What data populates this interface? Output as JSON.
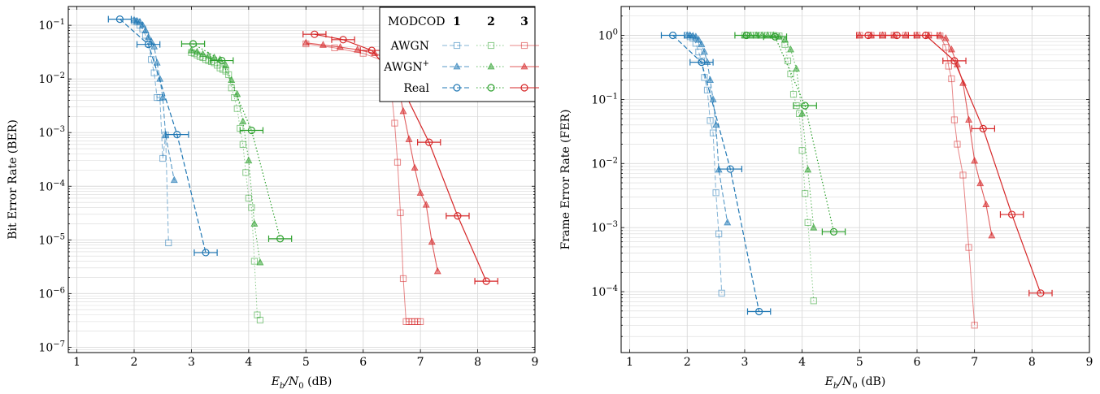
{
  "colors": {
    "series1": "#1f77b4",
    "series2": "#2ca02c",
    "series3": "#d62728",
    "grid": "#d9d9d9",
    "axis": "#000000"
  },
  "legend": {
    "header": "MODCOD",
    "columns": [
      "1",
      "2",
      "3"
    ],
    "rows": [
      {
        "label": "AWGN",
        "label_sup": "",
        "marker": "square",
        "opacity": 0.55,
        "dash": "dashed-light"
      },
      {
        "label": "AWGN",
        "label_sup": "+",
        "marker": "triangle",
        "opacity": 0.75,
        "dash": "dashed-medium"
      },
      {
        "label": "Real",
        "label_sup": "",
        "marker": "circle",
        "opacity": 1.0,
        "dash": "dashed-dark"
      }
    ]
  },
  "xlabel": {
    "main": "E",
    "sub1": "b",
    "slash": "/N",
    "sub2": "0",
    "unit": " (dB)"
  },
  "chart_data": [
    {
      "type": "scatter",
      "id": "ber",
      "ylabel": "Bit Error Rate (BER)",
      "xlim": [
        0.85,
        9.0
      ],
      "ylim_log10": [
        -7.1,
        -0.65
      ],
      "y_scale": "log",
      "grid": true,
      "legend_position": "top-right",
      "x_ticks": [
        1,
        2,
        3,
        4,
        5,
        6,
        7,
        8,
        9
      ],
      "y_ticks": [
        {
          "base": "10",
          "exp": "−1",
          "v": -1
        },
        {
          "base": "10",
          "exp": "−2",
          "v": -2
        },
        {
          "base": "10",
          "exp": "−3",
          "v": -3
        },
        {
          "base": "10",
          "exp": "−4",
          "v": -4
        },
        {
          "base": "10",
          "exp": "−5",
          "v": -5
        },
        {
          "base": "10",
          "exp": "−6",
          "v": -6
        },
        {
          "base": "10",
          "exp": "−7",
          "v": -7
        }
      ],
      "series": [
        {
          "modcod": 1,
          "kind": "AWGN",
          "x": [
            2.0,
            2.05,
            2.1,
            2.15,
            2.2,
            2.25,
            2.3,
            2.35,
            2.4,
            2.45,
            2.5,
            2.55,
            2.6
          ],
          "y": [
            0.12,
            0.115,
            0.1,
            0.085,
            0.065,
            0.045,
            0.023,
            0.013,
            0.0045,
            0.0045,
            0.00033,
            0.0009,
            8.8e-06
          ]
        },
        {
          "modcod": 1,
          "kind": "AWGN+",
          "x": [
            2.0,
            2.05,
            2.1,
            2.15,
            2.2,
            2.25,
            2.3,
            2.35,
            2.4,
            2.45,
            2.5,
            2.55,
            2.7
          ],
          "y": [
            0.125,
            0.12,
            0.115,
            0.1,
            0.08,
            0.06,
            0.05,
            0.04,
            0.02,
            0.01,
            0.0045,
            0.0009,
            0.00013
          ]
        },
        {
          "modcod": 1,
          "kind": "Real",
          "x": [
            1.75,
            2.25,
            2.75,
            3.25
          ],
          "y": [
            0.13,
            0.044,
            0.00092,
            5.8e-06
          ],
          "xerr": [
            0.2,
            0.2,
            0.2,
            0.2
          ]
        },
        {
          "modcod": 2,
          "kind": "AWGN",
          "x": [
            3.0,
            3.05,
            3.1,
            3.15,
            3.2,
            3.25,
            3.3,
            3.35,
            3.4,
            3.45,
            3.5,
            3.55,
            3.6,
            3.65,
            3.7,
            3.75,
            3.8,
            3.85,
            3.9,
            3.95,
            4.0,
            4.05,
            4.1,
            4.15,
            4.2
          ],
          "y": [
            0.031,
            0.03,
            0.028,
            0.026,
            0.025,
            0.023,
            0.022,
            0.021,
            0.02,
            0.018,
            0.016,
            0.015,
            0.014,
            0.012,
            0.0068,
            0.0045,
            0.0028,
            0.0012,
            0.0006,
            0.00018,
            6e-05,
            4e-05,
            4e-06,
            4e-07,
            3.2e-07
          ]
        },
        {
          "modcod": 2,
          "kind": "AWGN+",
          "x": [
            3.0,
            3.1,
            3.2,
            3.3,
            3.4,
            3.5,
            3.6,
            3.7,
            3.8,
            3.9,
            4.0,
            4.1,
            4.2
          ],
          "y": [
            0.034,
            0.032,
            0.029,
            0.027,
            0.025,
            0.023,
            0.018,
            0.0095,
            0.0052,
            0.0016,
            0.0003,
            2e-05,
            3.8e-06
          ]
        },
        {
          "modcod": 2,
          "kind": "Real",
          "x": [
            3.03,
            3.53,
            4.05,
            4.55
          ],
          "y": [
            0.045,
            0.022,
            0.0011,
            1.05e-05
          ],
          "xerr": [
            0.2,
            0.2,
            0.2,
            0.2
          ]
        },
        {
          "modcod": 3,
          "kind": "AWGN",
          "x": [
            5.0,
            5.5,
            6.0,
            6.4,
            6.5,
            6.55,
            6.6,
            6.65,
            6.7,
            6.75,
            6.8,
            6.85,
            6.9,
            6.95,
            7.0
          ],
          "y": [
            0.045,
            0.038,
            0.03,
            0.021,
            0.005,
            0.0015,
            0.00028,
            3.2e-05,
            1.9e-06,
            3e-07,
            3e-07,
            3e-07,
            3e-07,
            3e-07,
            3e-07
          ]
        },
        {
          "modcod": 3,
          "kind": "AWGN+",
          "x": [
            5.0,
            5.3,
            5.6,
            5.9,
            6.2,
            6.5,
            6.6,
            6.7,
            6.8,
            6.9,
            7.0,
            7.1,
            7.2,
            7.3
          ],
          "y": [
            0.047,
            0.043,
            0.039,
            0.035,
            0.03,
            0.022,
            0.0085,
            0.0025,
            0.00075,
            0.00022,
            7.5e-05,
            4.5e-05,
            9.2e-06,
            2.6e-06
          ]
        },
        {
          "modcod": 3,
          "kind": "Real",
          "x": [
            5.15,
            5.65,
            6.15,
            6.65,
            7.15,
            7.65,
            8.15
          ],
          "y": [
            0.068,
            0.054,
            0.034,
            0.008,
            0.00066,
            2.8e-05,
            1.7e-06
          ],
          "xerr": [
            0.2,
            0.2,
            0.2,
            0.2,
            0.2,
            0.2,
            0.2
          ]
        }
      ]
    },
    {
      "type": "scatter",
      "id": "fer",
      "ylabel": "Frame Error Rate (FER)",
      "xlim": [
        0.85,
        9.0
      ],
      "ylim_log10": [
        -4.95,
        0.45
      ],
      "y_scale": "log",
      "grid": true,
      "legend_position": "none",
      "x_ticks": [
        1,
        2,
        3,
        4,
        5,
        6,
        7,
        8,
        9
      ],
      "y_ticks": [
        {
          "base": "10",
          "exp": "0",
          "v": 0
        },
        {
          "base": "10",
          "exp": "−1",
          "v": -1
        },
        {
          "base": "10",
          "exp": "−2",
          "v": -2
        },
        {
          "base": "10",
          "exp": "−3",
          "v": -3
        },
        {
          "base": "10",
          "exp": "−4",
          "v": -4
        }
      ],
      "series": [
        {
          "modcod": 1,
          "kind": "AWGN",
          "x": [
            2.0,
            2.05,
            2.1,
            2.15,
            2.2,
            2.25,
            2.3,
            2.35,
            2.4,
            2.45,
            2.5,
            2.55,
            2.6
          ],
          "y": [
            1.0,
            0.95,
            0.9,
            0.75,
            0.55,
            0.4,
            0.22,
            0.14,
            0.047,
            0.03,
            0.0035,
            0.0008,
            9.5e-05
          ]
        },
        {
          "modcod": 1,
          "kind": "AWGN+",
          "x": [
            2.0,
            2.05,
            2.1,
            2.15,
            2.2,
            2.25,
            2.3,
            2.35,
            2.4,
            2.45,
            2.5,
            2.55,
            2.7
          ],
          "y": [
            1.0,
            1.0,
            0.98,
            0.95,
            0.85,
            0.72,
            0.55,
            0.38,
            0.2,
            0.1,
            0.04,
            0.008,
            0.0012
          ]
        },
        {
          "modcod": 1,
          "kind": "Real",
          "x": [
            1.75,
            2.25,
            2.75,
            3.25
          ],
          "y": [
            1.0,
            0.38,
            0.0082,
            4.9e-05
          ],
          "xerr": [
            0.2,
            0.2,
            0.2,
            0.2
          ]
        },
        {
          "modcod": 2,
          "kind": "AWGN",
          "x": [
            3.0,
            3.1,
            3.2,
            3.3,
            3.4,
            3.5,
            3.6,
            3.7,
            3.75,
            3.8,
            3.85,
            3.9,
            3.95,
            4.0,
            4.05,
            4.1,
            4.2
          ],
          "y": [
            1.0,
            1.0,
            1.0,
            1.0,
            1.0,
            1.0,
            0.98,
            0.72,
            0.4,
            0.25,
            0.12,
            0.08,
            0.06,
            0.016,
            0.0034,
            0.0012,
            7.2e-05
          ]
        },
        {
          "modcod": 2,
          "kind": "AWGN+",
          "x": [
            3.0,
            3.1,
            3.2,
            3.3,
            3.4,
            3.5,
            3.6,
            3.7,
            3.8,
            3.9,
            4.0,
            4.1,
            4.2
          ],
          "y": [
            1.0,
            1.0,
            1.0,
            1.0,
            1.0,
            1.0,
            0.95,
            0.85,
            0.6,
            0.3,
            0.06,
            0.008,
            0.001
          ]
        },
        {
          "modcod": 2,
          "kind": "Real",
          "x": [
            3.03,
            3.53,
            4.05,
            4.55
          ],
          "y": [
            1.0,
            0.95,
            0.08,
            0.00086
          ],
          "xerr": [
            0.2,
            0.2,
            0.2,
            0.2
          ]
        },
        {
          "modcod": 3,
          "kind": "AWGN",
          "x": [
            5.0,
            5.2,
            5.4,
            5.6,
            5.8,
            6.0,
            6.2,
            6.4,
            6.5,
            6.55,
            6.6,
            6.65,
            6.7,
            6.8,
            6.9,
            7.0
          ],
          "y": [
            1.0,
            1.0,
            1.0,
            1.0,
            1.0,
            1.0,
            1.0,
            0.98,
            0.65,
            0.33,
            0.21,
            0.048,
            0.02,
            0.0066,
            0.00049,
            3e-05
          ]
        },
        {
          "modcod": 3,
          "kind": "AWGN+",
          "x": [
            5.0,
            5.2,
            5.4,
            5.6,
            5.8,
            6.0,
            6.2,
            6.4,
            6.5,
            6.6,
            6.7,
            6.8,
            6.9,
            7.0,
            7.1,
            7.2,
            7.3
          ],
          "y": [
            1.0,
            1.0,
            1.0,
            1.0,
            1.0,
            1.0,
            1.0,
            1.0,
            0.9,
            0.6,
            0.35,
            0.18,
            0.048,
            0.011,
            0.0049,
            0.0023,
            0.00075
          ]
        },
        {
          "modcod": 3,
          "kind": "Real",
          "x": [
            5.15,
            5.65,
            6.15,
            6.65,
            7.15,
            7.65,
            8.15
          ],
          "y": [
            1.0,
            1.0,
            1.0,
            0.4,
            0.035,
            0.0016,
            9.5e-05
          ],
          "xerr": [
            0.2,
            0.2,
            0.2,
            0.2,
            0.2,
            0.2,
            0.2
          ]
        }
      ]
    }
  ]
}
